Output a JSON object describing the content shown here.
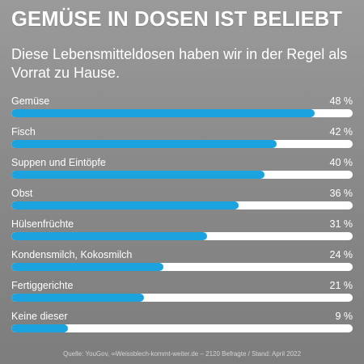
{
  "header": {
    "title": "GEMÜSE IN DOSEN IST BELIEBT",
    "subtitle": "Diese Lebensmitteldosen haben wir in der Regel als Vorrat zu Hause."
  },
  "colors": {
    "bar": "#1ba3e0",
    "track": "#ffffff"
  },
  "chart_data": {
    "type": "bar",
    "orientation": "horizontal",
    "categories": [
      "Gemüse",
      "Fisch",
      "Suppen und Eintöpfe",
      "Obst",
      "Hülsenfrüchte",
      "Kondensmilch, Kokosmilch",
      "Fertiggerichte",
      "Keine dieser"
    ],
    "values": [
      48,
      42,
      40,
      36,
      31,
      24,
      21,
      9
    ],
    "value_labels": [
      "48 %",
      "42 %",
      "40 %",
      "36 %",
      "31 %",
      "24 %",
      "21 %",
      "9 %"
    ],
    "xlim": [
      0,
      54
    ]
  },
  "footer": {
    "source": "Quelle: YouGov,",
    "link": "Weissblech-kommt-weiter.de",
    "details": "– 2120 Befragte / Stand: April 2022",
    "link_icon": "link-icon"
  }
}
